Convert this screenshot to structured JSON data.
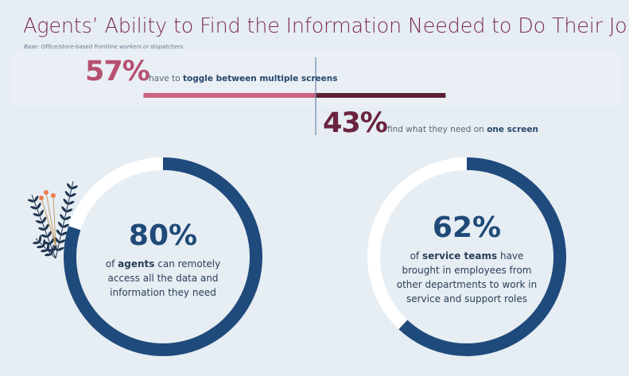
{
  "title": "Agents’ Ability to Find the Information Needed to Do Their Job",
  "base_note": "Base: Office/store-based frontline workers or dispatchers.",
  "colors": {
    "pink": "#c9647f",
    "maroon": "#5b2236",
    "donut_blue": "#1f4a7c",
    "donut_rest": "#ffffff",
    "title": "#7b2d4e"
  },
  "chart_data": [
    {
      "type": "bar",
      "orientation": "diverging-horizontal",
      "series": [
        {
          "value": 57,
          "label": "57%",
          "text_pre": "have to ",
          "text_bold": "toggle between multiple screens",
          "color": "#c9647f"
        },
        {
          "value": 43,
          "label": "43%",
          "text_pre": "find what they need on ",
          "text_bold": "one screen",
          "color": "#5b2236"
        }
      ]
    },
    {
      "type": "pie",
      "variant": "donut",
      "value": 80,
      "label": "80%",
      "desc_pre": "of ",
      "desc_bold": "agents",
      "desc_post": " can remotely access all the data and information they need"
    },
    {
      "type": "pie",
      "variant": "donut",
      "value": 62,
      "label": "62%",
      "desc_pre": "of ",
      "desc_bold": "service teams",
      "desc_post": " have brought in employees from other departments to work in service and support roles"
    }
  ],
  "decoration": "leaf-plant-icon"
}
